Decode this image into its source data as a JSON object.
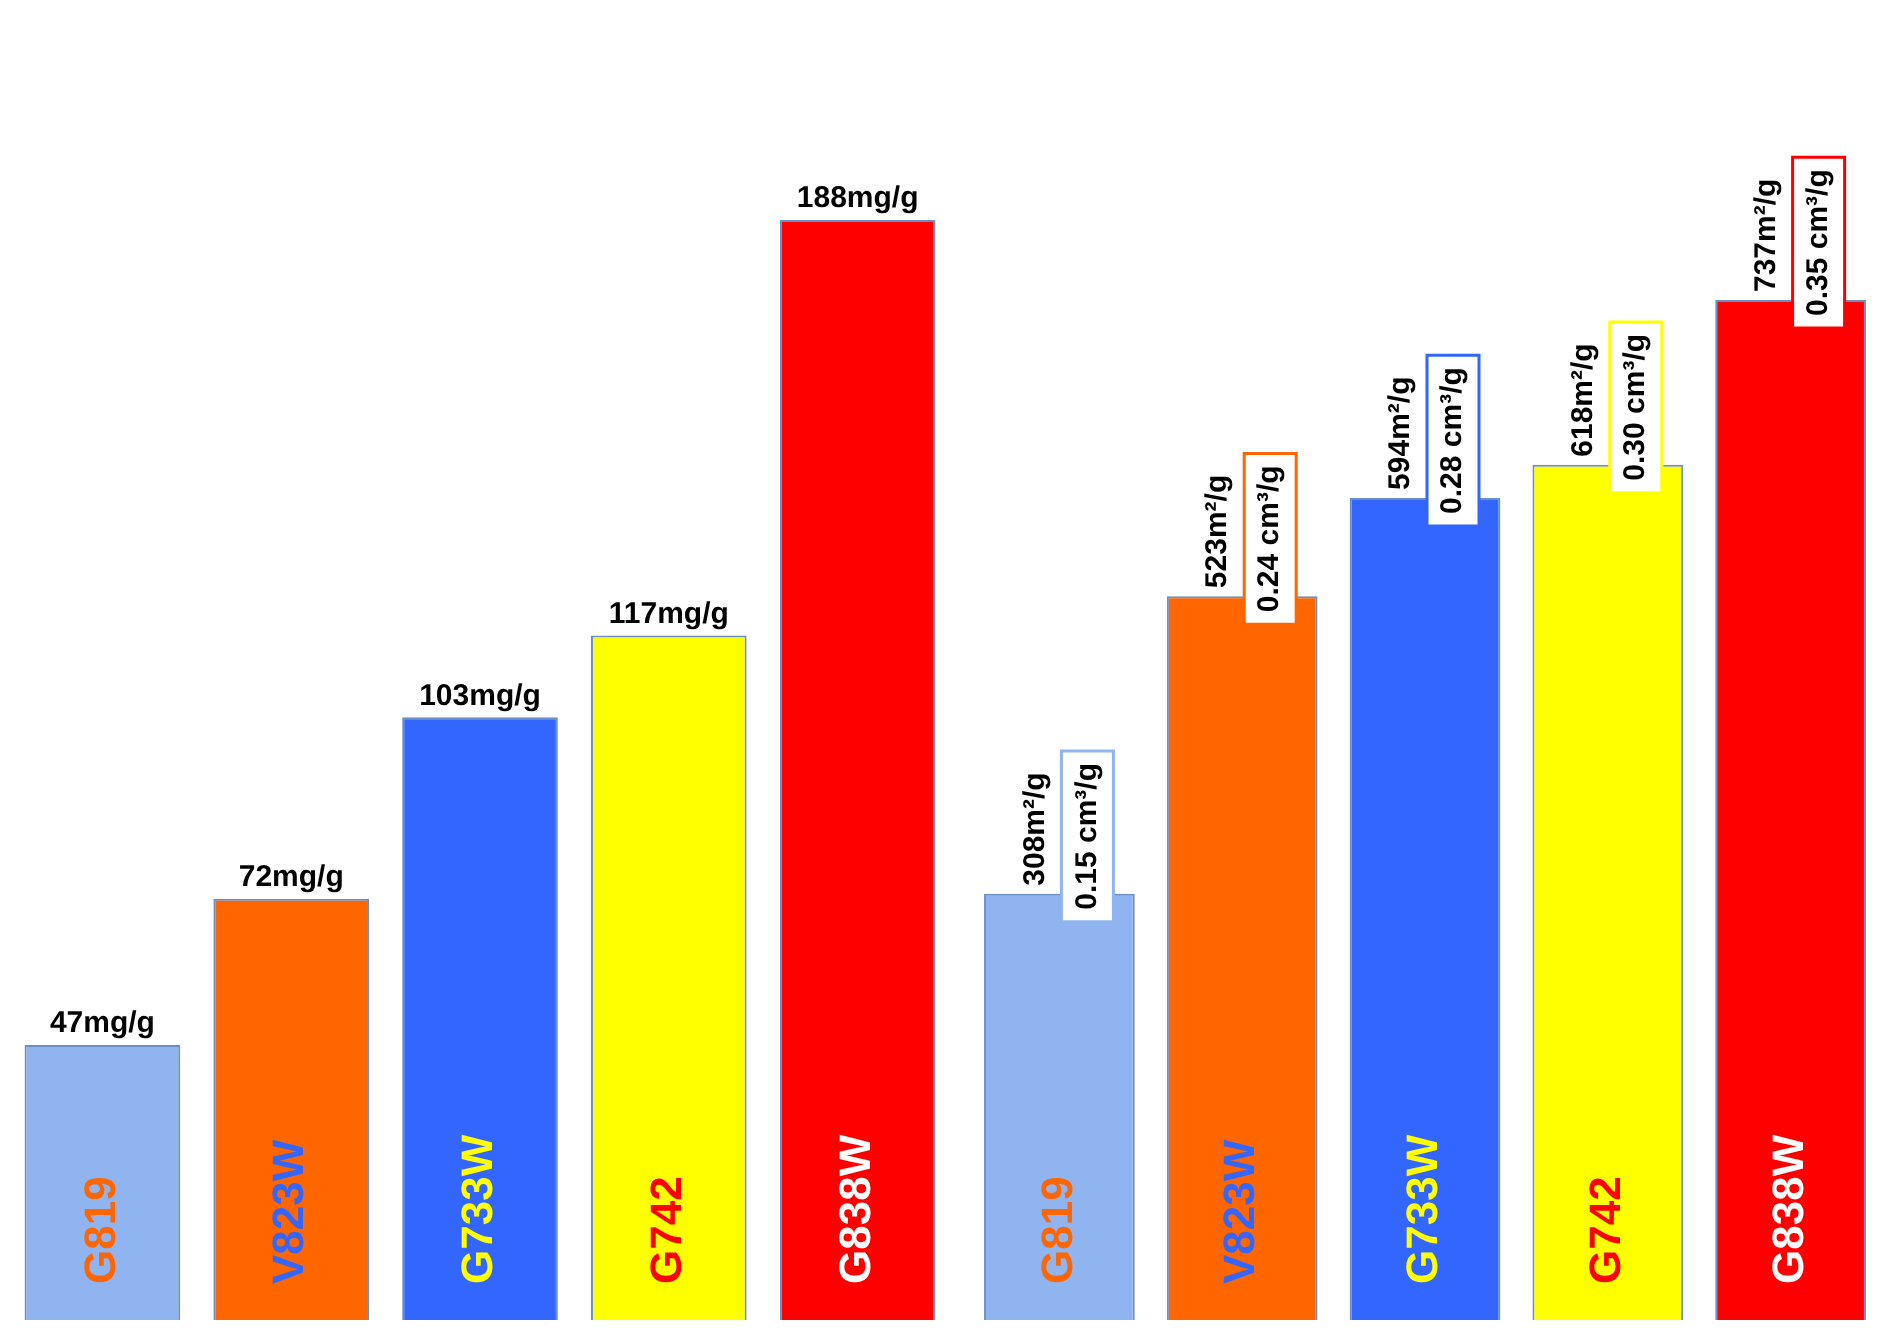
{
  "chart_data": [
    {
      "type": "bar",
      "categories": [
        "G819",
        "V823W",
        "G733W",
        "G742",
        "G838W"
      ],
      "values": [
        47,
        72,
        103,
        117,
        188
      ],
      "colors": [
        "#8fb4f0",
        "#ff6600",
        "#3366ff",
        "#ffff00",
        "#ff0000"
      ],
      "value_labels": [
        "47mg/g",
        "72mg/g",
        "103mg/g",
        "117mg/g",
        "188mg/g"
      ]
    },
    {
      "type": "bar",
      "categories": [
        "G819",
        "V823W",
        "G733W",
        "G742",
        "G838W"
      ],
      "values": [
        308,
        523,
        594,
        618,
        737
      ],
      "colors": [
        "#8fb4f0",
        "#ff6600",
        "#3366ff",
        "#ffff00",
        "#ff0000"
      ],
      "value_labels": [
        "308m²/g",
        "523m²/g",
        "594m²/g",
        "618m²/g",
        "737m²/g"
      ],
      "annotations": [
        "0.15 cm³/g",
        "0.24 cm³/g",
        "0.28 cm³/g",
        "0.30 cm³/g",
        "0.35 cm³/g"
      ]
    }
  ]
}
